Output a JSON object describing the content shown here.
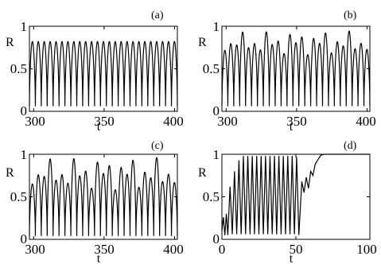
{
  "figure": {
    "panels": [
      {
        "label": "(a)",
        "xlabel": "t",
        "ylabel": "R",
        "xticks": [
          "300",
          "350",
          "400"
        ],
        "yticks": [
          "0",
          "0.5",
          "1"
        ]
      },
      {
        "label": "(b)",
        "xlabel": "t",
        "ylabel": "R",
        "xticks": [
          "300",
          "350",
          "400"
        ],
        "yticks": [
          "0",
          "0.5",
          "1"
        ]
      },
      {
        "label": "(c)",
        "xlabel": "t",
        "ylabel": "R",
        "xticks": [
          "300",
          "350",
          "400"
        ],
        "yticks": [
          "0",
          "0.5",
          "1"
        ]
      },
      {
        "label": "(d)",
        "xlabel": "t",
        "ylabel": "R",
        "xticks": [
          "0",
          "50",
          "100"
        ],
        "yticks": [
          "0",
          "0.5",
          "1"
        ]
      }
    ]
  },
  "chart_data": [
    {
      "type": "line",
      "title": "(a)",
      "xlabel": "t",
      "ylabel": "R",
      "xlim": [
        297,
        402
      ],
      "ylim": [
        0,
        1
      ],
      "xticks": [
        300,
        350,
        400
      ],
      "yticks": [
        0,
        0.5,
        1
      ],
      "grid": false,
      "series": [
        {
          "oscillation": {
            "t_start": 297,
            "t_end": 402,
            "period": 4.2,
            "min": 0.06,
            "peak_max": 0.82,
            "peak_variation": 0.0
          }
        }
      ]
    },
    {
      "type": "line",
      "title": "(b)",
      "xlabel": "t",
      "ylabel": "R",
      "xlim": [
        297,
        402
      ],
      "ylim": [
        0,
        1
      ],
      "xticks": [
        300,
        350,
        400
      ],
      "yticks": [
        0,
        0.5,
        1
      ],
      "grid": false,
      "series": [
        {
          "oscillation": {
            "t_start": 297,
            "t_end": 402,
            "period": 4.2,
            "min": 0.06,
            "peak_max": 0.95,
            "peak_variation": 0.3
          }
        }
      ]
    },
    {
      "type": "line",
      "title": "(c)",
      "xlabel": "t",
      "ylabel": "R",
      "xlim": [
        297,
        402
      ],
      "ylim": [
        0,
        1
      ],
      "xticks": [
        300,
        350,
        400
      ],
      "yticks": [
        0,
        0.5,
        1
      ],
      "grid": false,
      "series": [
        {
          "oscillation": {
            "t_start": 297,
            "t_end": 402,
            "period": 4.2,
            "min": 0.04,
            "peak_max": 0.97,
            "peak_variation": 0.4
          }
        }
      ]
    },
    {
      "type": "line",
      "title": "(d)",
      "xlabel": "t",
      "ylabel": "R",
      "xlim": [
        0,
        100
      ],
      "ylim": [
        0,
        1
      ],
      "xticks": [
        0,
        50,
        100
      ],
      "yticks": [
        0,
        0.5,
        1
      ],
      "grid": false,
      "series": [
        {
          "points": [
            [
              0,
              0.1
            ],
            [
              1,
              0.26
            ],
            [
              2,
              0.05
            ],
            [
              3,
              0.3
            ],
            [
              4,
              0.05
            ],
            [
              5.5,
              0.62
            ],
            [
              7,
              0.06
            ],
            [
              8.5,
              0.8
            ],
            [
              10,
              0.06
            ],
            [
              11.5,
              0.93
            ],
            [
              13,
              0.06
            ],
            [
              14.5,
              0.98
            ],
            [
              16,
              0.06
            ],
            [
              17.5,
              0.98
            ],
            [
              19,
              0.06
            ],
            [
              20.5,
              0.98
            ],
            [
              22,
              0.06
            ],
            [
              23.5,
              0.98
            ],
            [
              25,
              0.06
            ],
            [
              26.5,
              0.98
            ],
            [
              28,
              0.06
            ],
            [
              29.5,
              0.98
            ],
            [
              31,
              0.06
            ],
            [
              32.5,
              0.98
            ],
            [
              34,
              0.06
            ],
            [
              35.5,
              0.98
            ],
            [
              37,
              0.06
            ],
            [
              38.5,
              0.98
            ],
            [
              40,
              0.06
            ],
            [
              41.5,
              0.98
            ],
            [
              43,
              0.06
            ],
            [
              44.5,
              0.98
            ],
            [
              46,
              0.06
            ],
            [
              47.5,
              0.98
            ],
            [
              49,
              0.06
            ],
            [
              50.5,
              0.97
            ],
            [
              52,
              0.05
            ],
            [
              54,
              0.68
            ],
            [
              55.5,
              0.55
            ],
            [
              57,
              0.73
            ],
            [
              58.5,
              0.6
            ],
            [
              60,
              0.8
            ],
            [
              61.5,
              0.75
            ],
            [
              63,
              0.88
            ],
            [
              65,
              0.94
            ],
            [
              67,
              0.99
            ],
            [
              69,
              1.0
            ],
            [
              100,
              1.0
            ]
          ]
        }
      ]
    }
  ]
}
